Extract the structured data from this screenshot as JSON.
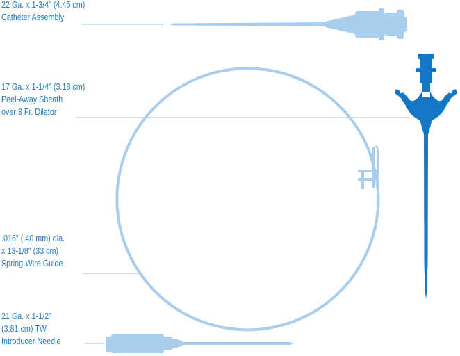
{
  "colors": {
    "text": "#1e7fc4",
    "light_blue": "#a9cdec",
    "dark_blue": "#1677c7",
    "white": "#ffffff"
  },
  "labels": {
    "catheter": [
      "22 Ga. x 1-3/4\" (4.45 cm)",
      "Catheter Assembly"
    ],
    "sheath": [
      "17 Ga. x 1-1/4\" (3.18 cm)",
      "Peel-Away Sheath",
      "over 3 Fr. Dilator"
    ],
    "guidewire": [
      ".016\" (.40 mm) dia.",
      "x 13-1/8\" (33 cm)",
      "Spring-Wire Guide"
    ],
    "needle": [
      "21 Ga. x 1-1/2\"",
      "(3.81 cm) TW",
      "Introducer Needle"
    ]
  }
}
